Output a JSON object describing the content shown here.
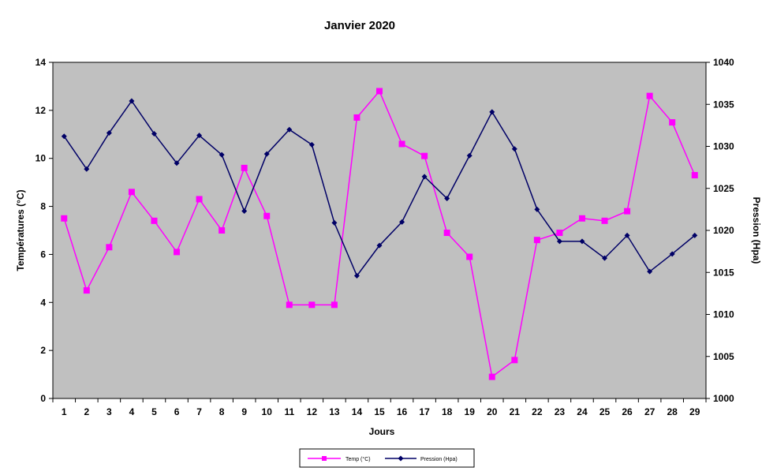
{
  "chart_data": {
    "type": "line",
    "title": "Janvier 2020",
    "xlabel": "Jours",
    "ylabel_left": "Températures (°C)",
    "ylabel_right": "Pression (Hpa)",
    "x": [
      "1",
      "2",
      "3",
      "4",
      "5",
      "6",
      "7",
      "8",
      "9",
      "10",
      "11",
      "12",
      "13",
      "14",
      "15",
      "16",
      "17",
      "18",
      "19",
      "20",
      "21",
      "22",
      "23",
      "24",
      "25",
      "26",
      "27",
      "28",
      "29"
    ],
    "yticks_left": [
      "0",
      "2",
      "4",
      "6",
      "8",
      "10",
      "12",
      "14"
    ],
    "yticks_right": [
      "1000",
      "1005",
      "1010",
      "1015",
      "1020",
      "1025",
      "1030",
      "1035",
      "1040"
    ],
    "ylim_left": [
      0,
      14
    ],
    "ylim_right": [
      1000,
      1040
    ],
    "plot_background": "#c0c0c0",
    "grid": false,
    "legend_position": "bottom",
    "series": [
      {
        "name": "Temp (°C)",
        "axis": "left",
        "color": "#ff00ff",
        "marker": "square",
        "values": [
          7.5,
          4.5,
          6.3,
          8.6,
          7.4,
          6.1,
          8.3,
          7.0,
          9.6,
          7.6,
          3.9,
          3.9,
          3.9,
          11.7,
          12.8,
          10.6,
          10.1,
          6.9,
          5.9,
          0.9,
          1.6,
          6.6,
          6.9,
          7.5,
          7.4,
          7.8,
          12.6,
          11.5,
          9.3
        ]
      },
      {
        "name": "Pression (Hpa)",
        "axis": "right",
        "color": "#000066",
        "marker": "diamond",
        "values": [
          1031.2,
          1027.3,
          1031.6,
          1035.4,
          1031.5,
          1028.0,
          1031.3,
          1029.0,
          1022.3,
          1029.1,
          1032.0,
          1030.2,
          1020.9,
          1014.6,
          1018.2,
          1021.0,
          1026.4,
          1023.8,
          1028.9,
          1034.1,
          1029.7,
          1022.5,
          1018.7,
          1018.7,
          1016.7,
          1019.4,
          1015.1,
          1017.2,
          1019.4
        ]
      }
    ]
  }
}
